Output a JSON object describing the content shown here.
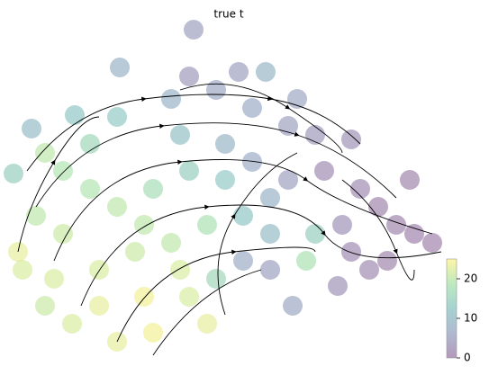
{
  "chart_data": {
    "type": "scatter",
    "title": "true t",
    "colormap": "viridis",
    "x": [
      205,
      123,
      73,
      25,
      5,
      40,
      60,
      90,
      120,
      180,
      230,
      255,
      285,
      270,
      310,
      340,
      380,
      350,
      390,
      410,
      430,
      450,
      470,
      445,
      420,
      400,
      365,
      315,
      290,
      260,
      230,
      200,
      160,
      120,
      70,
      40,
      15,
      10,
      30,
      60,
      100,
      140,
      180,
      220,
      260,
      290,
      310,
      340,
      330,
      240,
      200,
      160,
      120,
      90,
      190,
      240,
      270,
      150,
      100,
      50,
      220,
      190,
      150,
      290,
      370,
      380,
      320,
      200
    ],
    "y": [
      377,
      335,
      282,
      267,
      217,
      240,
      220,
      250,
      280,
      300,
      310,
      330,
      330,
      290,
      270,
      260,
      255,
      220,
      200,
      180,
      160,
      150,
      140,
      210,
      120,
      110,
      92,
      70,
      110,
      120,
      100,
      80,
      40,
      30,
      50,
      70,
      110,
      130,
      170,
      150,
      110,
      130,
      140,
      160,
      170,
      190,
      210,
      150,
      120,
      210,
      220,
      200,
      180,
      200,
      260,
      250,
      230,
      80,
      70,
      100,
      50,
      110,
      160,
      150,
      160,
      130,
      300,
      325
    ],
    "c": [
      5,
      8,
      12,
      10,
      14,
      20,
      19,
      16,
      13,
      8,
      6,
      5,
      9,
      7,
      5,
      4,
      3,
      2,
      2,
      1,
      1,
      0.5,
      0.5,
      1,
      1,
      2,
      3,
      6,
      5,
      7,
      16,
      22,
      24,
      23,
      22,
      21,
      22,
      23,
      20,
      21,
      22,
      21,
      20,
      18,
      12,
      8,
      5,
      14,
      18,
      13,
      14,
      17,
      20,
      19,
      11,
      9,
      7,
      24,
      23,
      22,
      23,
      22,
      20,
      10,
      3,
      2,
      6,
      4
    ],
    "xlim": [
      0,
      500
    ],
    "ylim": [
      0,
      400
    ],
    "clim": [
      0,
      25
    ],
    "cticks": [
      0,
      10,
      20
    ]
  }
}
